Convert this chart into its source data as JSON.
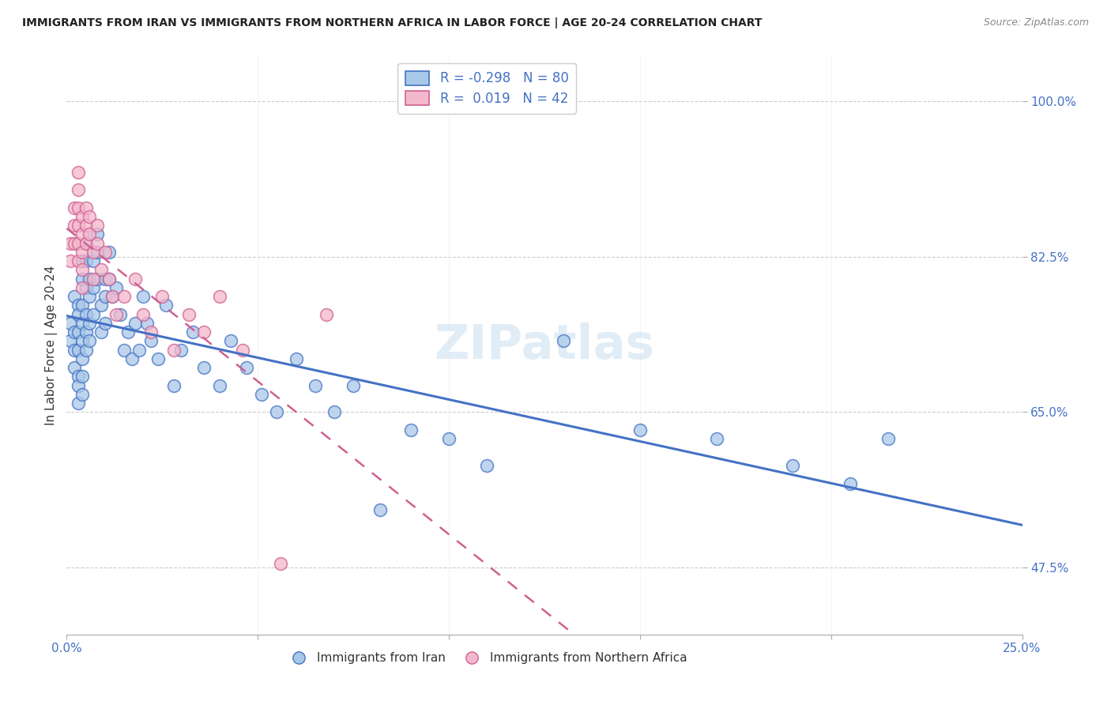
{
  "title": "IMMIGRANTS FROM IRAN VS IMMIGRANTS FROM NORTHERN AFRICA IN LABOR FORCE | AGE 20-24 CORRELATION CHART",
  "source": "Source: ZipAtlas.com",
  "ylabel": "In Labor Force | Age 20-24",
  "y_ticks": [
    0.475,
    0.65,
    0.825,
    1.0
  ],
  "y_tick_labels": [
    "47.5%",
    "65.0%",
    "82.5%",
    "100.0%"
  ],
  "x_ticks": [
    0.0,
    0.05,
    0.1,
    0.15,
    0.2,
    0.25
  ],
  "x_tick_labels": [
    "0.0%",
    "",
    "",
    "",
    "",
    "25.0%"
  ],
  "x_min": 0.0,
  "x_max": 0.25,
  "y_min": 0.4,
  "y_max": 1.05,
  "legend_r_iran": "-0.298",
  "legend_n_iran": "80",
  "legend_r_africa": "0.019",
  "legend_n_africa": "42",
  "color_iran": "#a8c8e8",
  "color_iran_line": "#4472c4",
  "color_africa": "#f4b8cc",
  "color_africa_line": "#d06090",
  "color_tick_label": "#4472c4",
  "watermark": "ZIPatlas",
  "iran_x": [
    0.001,
    0.001,
    0.002,
    0.002,
    0.002,
    0.002,
    0.003,
    0.003,
    0.003,
    0.003,
    0.003,
    0.003,
    0.003,
    0.004,
    0.004,
    0.004,
    0.004,
    0.004,
    0.004,
    0.004,
    0.004,
    0.005,
    0.005,
    0.005,
    0.005,
    0.005,
    0.005,
    0.006,
    0.006,
    0.006,
    0.006,
    0.007,
    0.007,
    0.007,
    0.008,
    0.008,
    0.008,
    0.009,
    0.009,
    0.01,
    0.01,
    0.01,
    0.011,
    0.011,
    0.012,
    0.013,
    0.014,
    0.015,
    0.016,
    0.017,
    0.018,
    0.019,
    0.02,
    0.021,
    0.022,
    0.024,
    0.026,
    0.028,
    0.03,
    0.033,
    0.036,
    0.04,
    0.043,
    0.047,
    0.051,
    0.055,
    0.06,
    0.065,
    0.07,
    0.075,
    0.082,
    0.09,
    0.1,
    0.11,
    0.13,
    0.15,
    0.17,
    0.19,
    0.205,
    0.215
  ],
  "iran_y": [
    0.75,
    0.73,
    0.78,
    0.74,
    0.72,
    0.7,
    0.77,
    0.76,
    0.74,
    0.72,
    0.69,
    0.68,
    0.66,
    0.82,
    0.8,
    0.77,
    0.75,
    0.73,
    0.71,
    0.69,
    0.67,
    0.84,
    0.82,
    0.79,
    0.76,
    0.74,
    0.72,
    0.8,
    0.78,
    0.75,
    0.73,
    0.82,
    0.79,
    0.76,
    0.85,
    0.83,
    0.8,
    0.77,
    0.74,
    0.8,
    0.78,
    0.75,
    0.83,
    0.8,
    0.78,
    0.79,
    0.76,
    0.72,
    0.74,
    0.71,
    0.75,
    0.72,
    0.78,
    0.75,
    0.73,
    0.71,
    0.77,
    0.68,
    0.72,
    0.74,
    0.7,
    0.68,
    0.73,
    0.7,
    0.67,
    0.65,
    0.71,
    0.68,
    0.65,
    0.68,
    0.54,
    0.63,
    0.62,
    0.59,
    0.73,
    0.63,
    0.62,
    0.59,
    0.57,
    0.62
  ],
  "africa_x": [
    0.001,
    0.001,
    0.002,
    0.002,
    0.002,
    0.003,
    0.003,
    0.003,
    0.003,
    0.003,
    0.003,
    0.004,
    0.004,
    0.004,
    0.004,
    0.004,
    0.005,
    0.005,
    0.005,
    0.006,
    0.006,
    0.007,
    0.007,
    0.008,
    0.008,
    0.009,
    0.01,
    0.011,
    0.012,
    0.013,
    0.015,
    0.018,
    0.02,
    0.022,
    0.025,
    0.028,
    0.032,
    0.036,
    0.04,
    0.046,
    0.056,
    0.068
  ],
  "africa_y": [
    0.84,
    0.82,
    0.88,
    0.86,
    0.84,
    0.92,
    0.9,
    0.88,
    0.86,
    0.84,
    0.82,
    0.87,
    0.85,
    0.83,
    0.81,
    0.79,
    0.88,
    0.86,
    0.84,
    0.87,
    0.85,
    0.83,
    0.8,
    0.86,
    0.84,
    0.81,
    0.83,
    0.8,
    0.78,
    0.76,
    0.78,
    0.8,
    0.76,
    0.74,
    0.78,
    0.72,
    0.76,
    0.74,
    0.78,
    0.72,
    0.48,
    0.76
  ]
}
